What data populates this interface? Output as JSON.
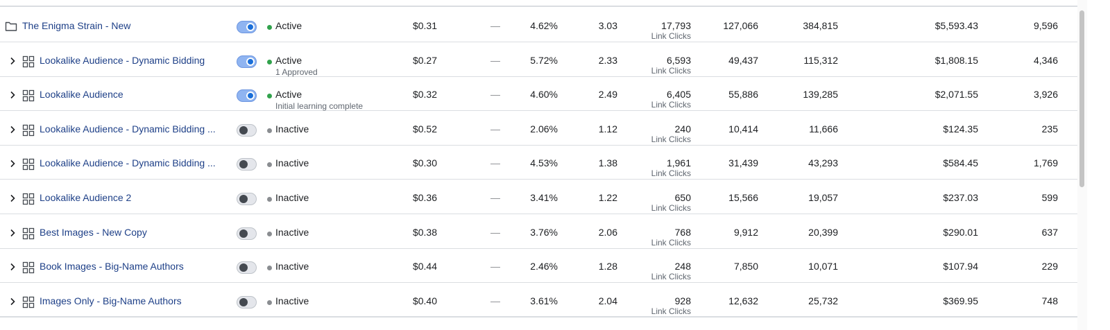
{
  "colors": {
    "active": "#31a24c",
    "inactive": "#8a8d91",
    "link": "#1d3f87"
  },
  "rows": [
    {
      "name": "The Enigma Strain - New",
      "icon": "folder-icon",
      "toggle": "on",
      "status": "Active",
      "sub_status": "",
      "cpc": "$0.31",
      "dash": "—",
      "ctr": "4.62%",
      "freq": "3.03",
      "results": "17,793",
      "results_label": "Link Clicks",
      "reach": "127,066",
      "impressions": "384,815",
      "spent": "$5,593.43",
      "clicks": "9,596"
    },
    {
      "name": "Lookalike Audience - Dynamic Bidding",
      "icon": "adset-icon",
      "toggle": "on",
      "status": "Active",
      "sub_status": "1 Approved",
      "cpc": "$0.27",
      "dash": "—",
      "ctr": "5.72%",
      "freq": "2.33",
      "results": "6,593",
      "results_label": "Link Clicks",
      "reach": "49,437",
      "impressions": "115,312",
      "spent": "$1,808.15",
      "clicks": "4,346"
    },
    {
      "name": "Lookalike Audience",
      "icon": "adset-icon",
      "toggle": "on",
      "status": "Active",
      "sub_status": "Initial learning complete",
      "cpc": "$0.32",
      "dash": "—",
      "ctr": "4.60%",
      "freq": "2.49",
      "results": "6,405",
      "results_label": "Link Clicks",
      "reach": "55,886",
      "impressions": "139,285",
      "spent": "$2,071.55",
      "clicks": "3,926"
    },
    {
      "name": "Lookalike Audience - Dynamic Bidding ...",
      "icon": "adset-icon",
      "toggle": "off",
      "status": "Inactive",
      "sub_status": "",
      "cpc": "$0.52",
      "dash": "—",
      "ctr": "2.06%",
      "freq": "1.12",
      "results": "240",
      "results_label": "Link Clicks",
      "reach": "10,414",
      "impressions": "11,666",
      "spent": "$124.35",
      "clicks": "235"
    },
    {
      "name": "Lookalike Audience - Dynamic Bidding ...",
      "icon": "adset-icon",
      "toggle": "off",
      "status": "Inactive",
      "sub_status": "",
      "cpc": "$0.30",
      "dash": "—",
      "ctr": "4.53%",
      "freq": "1.38",
      "results": "1,961",
      "results_label": "Link Clicks",
      "reach": "31,439",
      "impressions": "43,293",
      "spent": "$584.45",
      "clicks": "1,769"
    },
    {
      "name": "Lookalike Audience 2",
      "icon": "adset-icon",
      "toggle": "off",
      "status": "Inactive",
      "sub_status": "",
      "cpc": "$0.36",
      "dash": "—",
      "ctr": "3.41%",
      "freq": "1.22",
      "results": "650",
      "results_label": "Link Clicks",
      "reach": "15,566",
      "impressions": "19,057",
      "spent": "$237.03",
      "clicks": "599"
    },
    {
      "name": "Best Images - New Copy",
      "icon": "adset-icon",
      "toggle": "off",
      "status": "Inactive",
      "sub_status": "",
      "cpc": "$0.38",
      "dash": "—",
      "ctr": "3.76%",
      "freq": "2.06",
      "results": "768",
      "results_label": "Link Clicks",
      "reach": "9,912",
      "impressions": "20,399",
      "spent": "$290.01",
      "clicks": "637"
    },
    {
      "name": "Book Images - Big-Name Authors",
      "icon": "adset-icon",
      "toggle": "off",
      "status": "Inactive",
      "sub_status": "",
      "cpc": "$0.44",
      "dash": "—",
      "ctr": "2.46%",
      "freq": "1.28",
      "results": "248",
      "results_label": "Link Clicks",
      "reach": "7,850",
      "impressions": "10,071",
      "spent": "$107.94",
      "clicks": "229"
    },
    {
      "name": "Images Only - Big-Name Authors",
      "icon": "adset-icon",
      "toggle": "off",
      "status": "Inactive",
      "sub_status": "",
      "cpc": "$0.40",
      "dash": "—",
      "ctr": "3.61%",
      "freq": "2.04",
      "results": "928",
      "results_label": "Link Clicks",
      "reach": "12,632",
      "impressions": "25,732",
      "spent": "$369.95",
      "clicks": "748"
    }
  ]
}
